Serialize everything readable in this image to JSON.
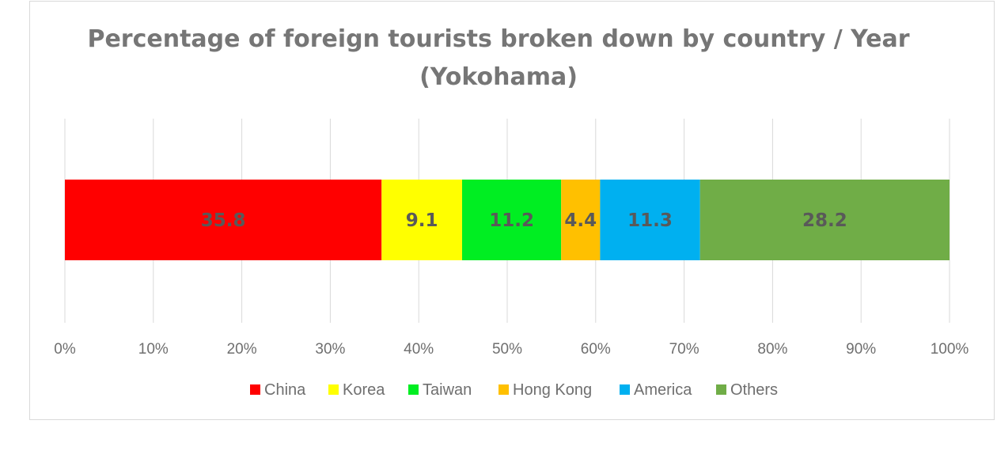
{
  "chart_data": {
    "type": "bar",
    "orientation": "horizontal",
    "stacking": "percent",
    "title": "Percentage of foreign tourists broken down by country / Year (Yokohama)",
    "title_lines": [
      "Percentage of foreign tourists broken down by country / Year",
      "(Yokohama)"
    ],
    "categories": [
      ""
    ],
    "xlim": [
      0,
      100
    ],
    "x_ticks": [
      "0%",
      "10%",
      "20%",
      "30%",
      "40%",
      "50%",
      "60%",
      "70%",
      "80%",
      "90%",
      "100%"
    ],
    "grid": true,
    "legend_position": "bottom",
    "series": [
      {
        "name": "China",
        "values": [
          35.8
        ],
        "label": "35.8",
        "color": "#ff0000"
      },
      {
        "name": "Korea",
        "values": [
          9.1
        ],
        "label": "9.1",
        "color": "#ffff00"
      },
      {
        "name": "Taiwan",
        "values": [
          11.2
        ],
        "label": "11.2",
        "color": "#00ee22"
      },
      {
        "name": "Hong Kong",
        "values": [
          4.4
        ],
        "label": "4.4",
        "color": "#ffc000"
      },
      {
        "name": "America",
        "values": [
          11.3
        ],
        "label": "11.3",
        "color": "#00b0f0"
      },
      {
        "name": "Others",
        "values": [
          28.2
        ],
        "label": "28.2",
        "color": "#70ad47"
      }
    ]
  }
}
